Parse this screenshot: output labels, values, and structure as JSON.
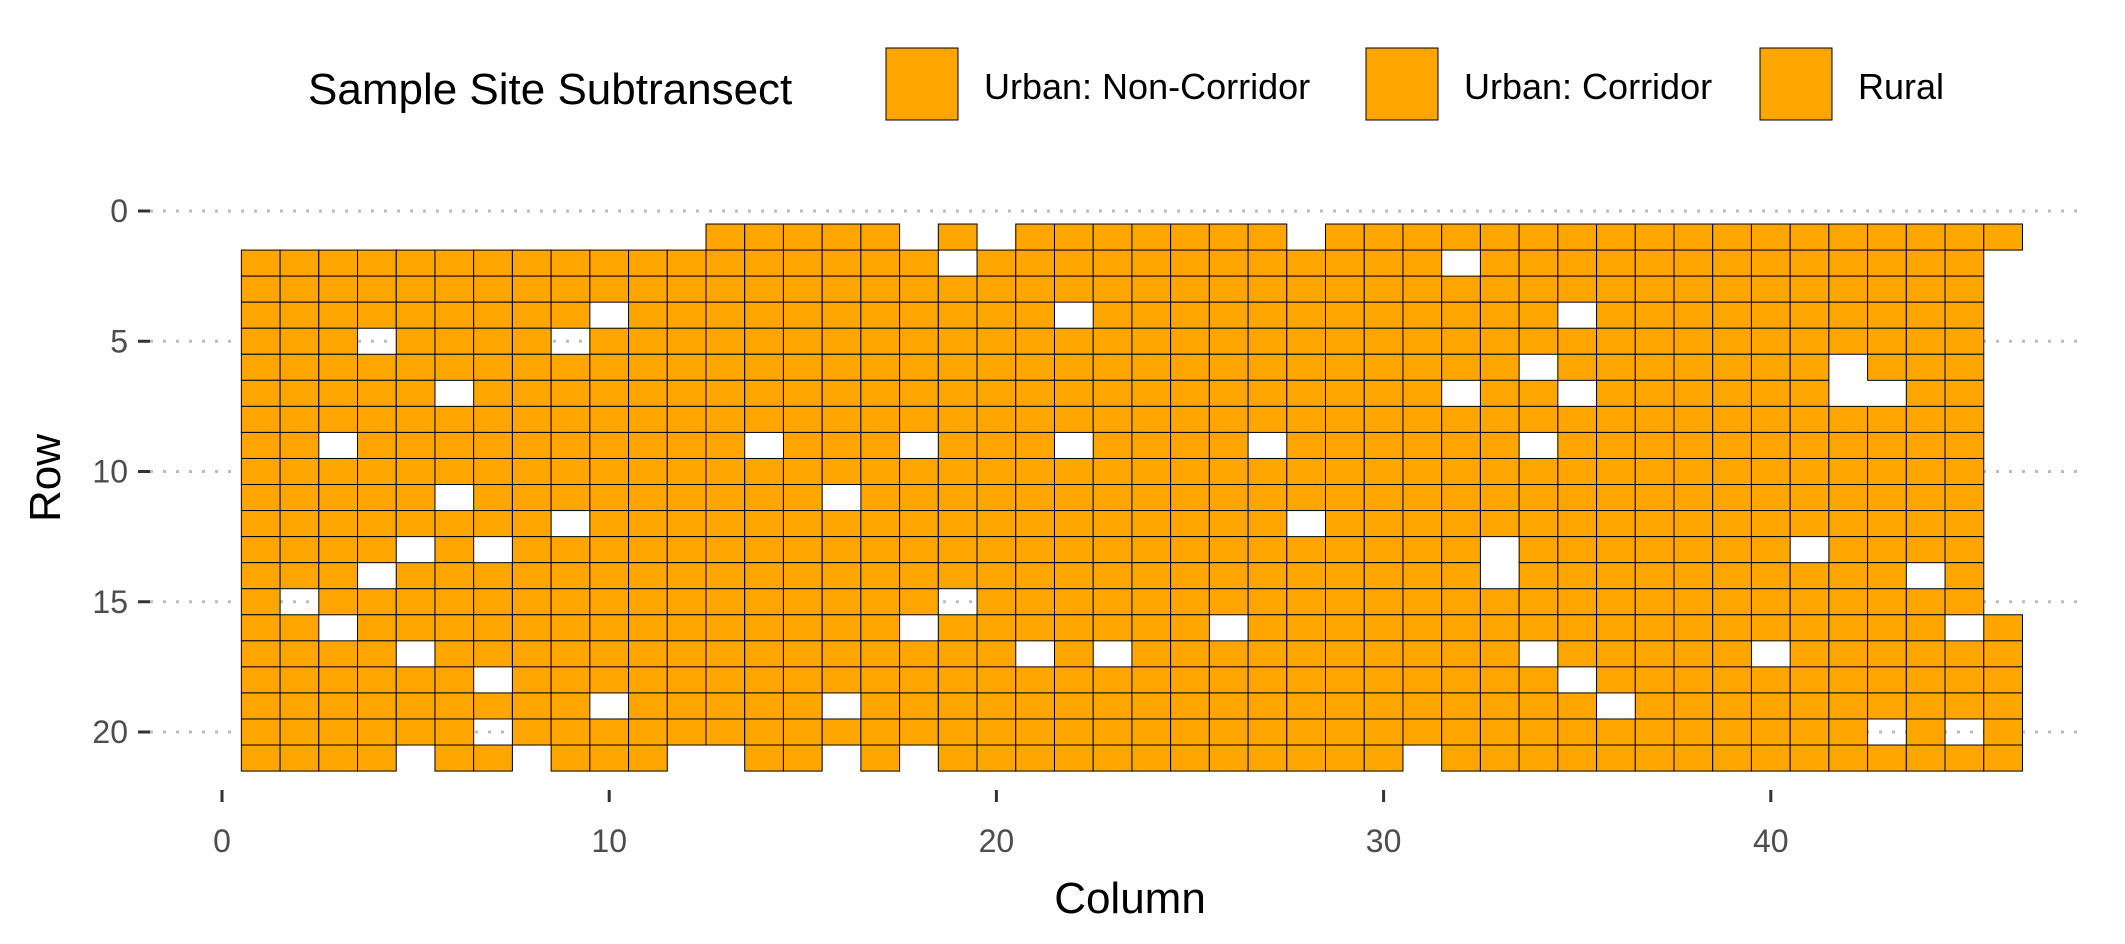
{
  "chart_data": {
    "type": "heatmap",
    "xlabel": "Column",
    "ylabel": "Row",
    "xlim": [
      0,
      46.5
    ],
    "ylim": [
      22,
      0
    ],
    "y_reversed": true,
    "x_ticks": [
      0,
      10,
      20,
      30,
      40
    ],
    "x_tick_labels": [
      "0",
      "10",
      "20",
      "30",
      "40"
    ],
    "y_ticks": [
      0,
      5,
      10,
      15,
      20
    ],
    "y_tick_labels": [
      "0",
      "5",
      "10",
      "15",
      "20"
    ],
    "grid": "dotted horizontal major lines",
    "legend": {
      "title": "Sample Site Subtransect",
      "placement": "top",
      "entries": [
        {
          "label": "Urban: Non-Corridor",
          "color": "#FFA500"
        },
        {
          "label": "Urban: Corridor",
          "color": "#FFA500"
        },
        {
          "label": "Rural",
          "color": "#FFA500"
        }
      ]
    },
    "cell_color": "#FFA500",
    "cell_border_color": "#000000",
    "columns": [
      {
        "col": 1,
        "rows": [
          2,
          21
        ],
        "gaps": []
      },
      {
        "col": 2,
        "rows": [
          2,
          21
        ],
        "gaps": [
          15
        ]
      },
      {
        "col": 3,
        "rows": [
          2,
          21
        ],
        "gaps": [
          9,
          16
        ]
      },
      {
        "col": 4,
        "rows": [
          2,
          21
        ],
        "gaps": [
          5,
          14
        ]
      },
      {
        "col": 5,
        "rows": [
          2,
          20
        ],
        "gaps": [
          13,
          17
        ]
      },
      {
        "col": 6,
        "rows": [
          2,
          21
        ],
        "gaps": [
          7,
          11
        ]
      },
      {
        "col": 7,
        "rows": [
          2,
          21
        ],
        "gaps": [
          13,
          18,
          20
        ]
      },
      {
        "col": 8,
        "rows": [
          2,
          20
        ],
        "gaps": []
      },
      {
        "col": 9,
        "rows": [
          2,
          21
        ],
        "gaps": [
          5,
          12
        ]
      },
      {
        "col": 10,
        "rows": [
          2,
          21
        ],
        "gaps": [
          4,
          19
        ]
      },
      {
        "col": 11,
        "rows": [
          2,
          21
        ],
        "gaps": []
      },
      {
        "col": 12,
        "rows": [
          2,
          20
        ],
        "gaps": []
      },
      {
        "col": 13,
        "rows": [
          1,
          20
        ],
        "gaps": []
      },
      {
        "col": 14,
        "rows": [
          1,
          21
        ],
        "gaps": [
          9
        ]
      },
      {
        "col": 15,
        "rows": [
          1,
          21
        ],
        "gaps": []
      },
      {
        "col": 16,
        "rows": [
          1,
          20
        ],
        "gaps": [
          11,
          19
        ]
      },
      {
        "col": 17,
        "rows": [
          1,
          21
        ],
        "gaps": []
      },
      {
        "col": 18,
        "rows": [
          2,
          20
        ],
        "gaps": [
          9,
          16
        ]
      },
      {
        "col": 19,
        "rows": [
          1,
          21
        ],
        "gaps": [
          2,
          15
        ]
      },
      {
        "col": 20,
        "rows": [
          2,
          21
        ],
        "gaps": []
      },
      {
        "col": 21,
        "rows": [
          1,
          21
        ],
        "gaps": [
          17
        ]
      },
      {
        "col": 22,
        "rows": [
          1,
          21
        ],
        "gaps": [
          4,
          9
        ]
      },
      {
        "col": 23,
        "rows": [
          1,
          21
        ],
        "gaps": [
          17
        ]
      },
      {
        "col": 24,
        "rows": [
          1,
          21
        ],
        "gaps": []
      },
      {
        "col": 25,
        "rows": [
          1,
          21
        ],
        "gaps": []
      },
      {
        "col": 26,
        "rows": [
          1,
          21
        ],
        "gaps": [
          16
        ]
      },
      {
        "col": 27,
        "rows": [
          1,
          21
        ],
        "gaps": [
          9
        ]
      },
      {
        "col": 28,
        "rows": [
          2,
          21
        ],
        "gaps": [
          12
        ]
      },
      {
        "col": 29,
        "rows": [
          1,
          21
        ],
        "gaps": []
      },
      {
        "col": 30,
        "rows": [
          1,
          21
        ],
        "gaps": []
      },
      {
        "col": 31,
        "rows": [
          1,
          20
        ],
        "gaps": []
      },
      {
        "col": 32,
        "rows": [
          1,
          21
        ],
        "gaps": [
          2,
          7
        ]
      },
      {
        "col": 33,
        "rows": [
          1,
          21
        ],
        "gaps": [
          13,
          14
        ]
      },
      {
        "col": 34,
        "rows": [
          1,
          21
        ],
        "gaps": [
          6,
          9,
          17
        ]
      },
      {
        "col": 35,
        "rows": [
          1,
          21
        ],
        "gaps": [
          4,
          7,
          18
        ]
      },
      {
        "col": 36,
        "rows": [
          1,
          21
        ],
        "gaps": [
          19
        ]
      },
      {
        "col": 37,
        "rows": [
          1,
          21
        ],
        "gaps": []
      },
      {
        "col": 38,
        "rows": [
          1,
          21
        ],
        "gaps": []
      },
      {
        "col": 39,
        "rows": [
          1,
          21
        ],
        "gaps": []
      },
      {
        "col": 40,
        "rows": [
          1,
          21
        ],
        "gaps": [
          17
        ]
      },
      {
        "col": 41,
        "rows": [
          1,
          21
        ],
        "gaps": [
          13
        ]
      },
      {
        "col": 42,
        "rows": [
          1,
          21
        ],
        "gaps": [
          6,
          7
        ]
      },
      {
        "col": 43,
        "rows": [
          1,
          21
        ],
        "gaps": [
          7,
          20
        ]
      },
      {
        "col": 44,
        "rows": [
          1,
          21
        ],
        "gaps": [
          14
        ]
      },
      {
        "col": 45,
        "rows": [
          1,
          21
        ],
        "gaps": [
          16,
          20
        ]
      },
      {
        "col": 46,
        "rows": [
          1,
          21
        ],
        "gaps": [
          2,
          3,
          4,
          5,
          6,
          7,
          8,
          9,
          10,
          11,
          12,
          13,
          14,
          15
        ]
      }
    ]
  }
}
